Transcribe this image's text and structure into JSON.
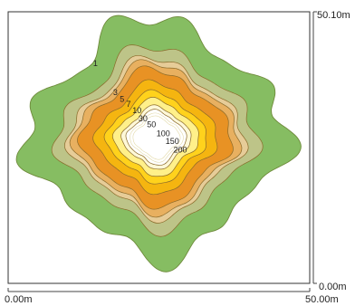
{
  "chart_data": {
    "type": "contour",
    "x_axis": {
      "min_label": "0.00m",
      "max_label": "50.00m",
      "range": [
        0,
        50.0
      ]
    },
    "y_axis": {
      "min_label": "0.00m",
      "max_label": "50.10m",
      "range": [
        0,
        50.1
      ]
    },
    "center": [
      24.6,
      26.9
    ],
    "levels": [
      {
        "value": 1,
        "label": "1",
        "color": "#86bd62",
        "radius_m": 20.3,
        "label_point": [
          14.1,
          40.1
        ]
      },
      {
        "value": 3,
        "label": "3",
        "color": "#bdc488",
        "radius_m": 15.3,
        "label_point": [
          17.4,
          34.7
        ]
      },
      {
        "value": 5,
        "label": "5",
        "color": "#e6cc98",
        "radius_m": 13.4,
        "label_point": [
          18.5,
          33.5
        ]
      },
      {
        "value": 7,
        "label": "7",
        "color": "#e8b060",
        "radius_m": 12.6,
        "label_point": [
          19.6,
          32.6
        ]
      },
      {
        "value": 10,
        "label": "10",
        "color": "#e89224",
        "radius_m": 11.5,
        "label_point": [
          20.6,
          31.4
        ]
      },
      {
        "value": 30,
        "label": "30",
        "color": "#f5b510",
        "radius_m": 9.3,
        "label_point": [
          21.6,
          29.9
        ]
      },
      {
        "value": 50,
        "label": "50",
        "color": "#ffd21c",
        "radius_m": 7.7,
        "label_point": [
          23.0,
          28.8
        ]
      },
      {
        "value": 100,
        "label": "100",
        "color": "#fff08a",
        "radius_m": 6.5,
        "label_point": [
          24.6,
          27.1
        ]
      },
      {
        "value": 150,
        "label": "150",
        "color": "#fef8d8",
        "radius_m": 5.3,
        "label_point": [
          26.1,
          25.7
        ]
      },
      {
        "value": 200,
        "label": "200",
        "color": "#ffffff",
        "radius_m": 4.6,
        "label_point": [
          27.4,
          24.1
        ]
      }
    ]
  }
}
